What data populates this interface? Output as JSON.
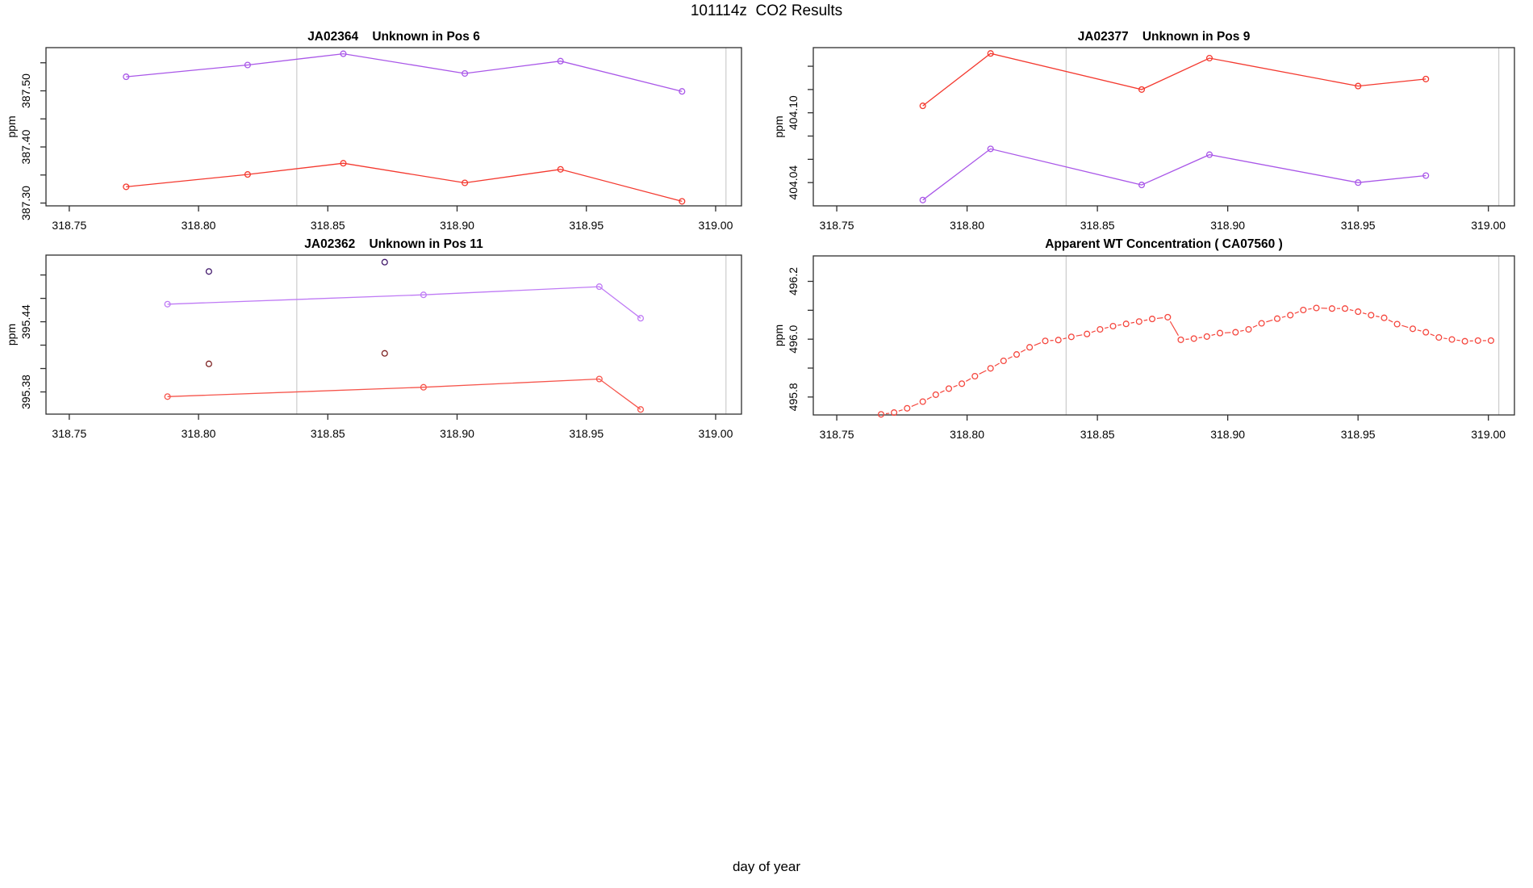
{
  "figure": {
    "title": "101114z  CO2 Results",
    "xlabel": "day of year",
    "colors": {
      "series_red": "#f4392f",
      "series_purple": "#a957e8",
      "outlier_dark_purple": "#41186b",
      "outlier_dark_red": "#7e2323",
      "reference_line": "#cccccc",
      "frame": "#2e2e2e"
    }
  },
  "chart_data": [
    {
      "type": "line",
      "id": "JA02364",
      "title": "JA02364    Unknown in Pos 6",
      "ylabel": "ppm",
      "xlim": [
        318.741,
        319.01
      ],
      "ylim": [
        387.295,
        387.577
      ],
      "ref_x": [
        318.838,
        319.004
      ],
      "xticks": [
        {
          "v": 318.75,
          "l": "318.75"
        },
        {
          "v": 318.8,
          "l": "318.80"
        },
        {
          "v": 318.85,
          "l": "318.85"
        },
        {
          "v": 318.9,
          "l": "318.90"
        },
        {
          "v": 318.95,
          "l": "318.95"
        },
        {
          "v": 319.0,
          "l": "319.00"
        }
      ],
      "yticks": [
        {
          "v": 387.3,
          "l": "387.30"
        },
        {
          "v": 387.35
        },
        {
          "v": 387.4,
          "l": "387.40"
        },
        {
          "v": 387.45
        },
        {
          "v": 387.5,
          "l": "387.50"
        },
        {
          "v": 387.55
        }
      ],
      "series": [
        {
          "name": "purple",
          "color": "#a957e8",
          "style": "o",
          "x": [
            318.772,
            318.819,
            318.856,
            318.903,
            318.94,
            318.987
          ],
          "y": [
            387.525,
            387.546,
            387.566,
            387.531,
            387.553,
            387.499
          ]
        },
        {
          "name": "red",
          "color": "#f4392f",
          "style": "o",
          "x": [
            318.772,
            318.819,
            318.856,
            318.903,
            318.94,
            318.987
          ],
          "y": [
            387.329,
            387.351,
            387.371,
            387.336,
            387.36,
            387.303
          ]
        }
      ]
    },
    {
      "type": "line",
      "id": "JA02377",
      "title": "JA02377    Unknown in Pos 9",
      "ylabel": "ppm",
      "xlim": [
        318.741,
        319.01
      ],
      "ylim": [
        404.02,
        404.156
      ],
      "ref_x": [
        318.838,
        319.004
      ],
      "xticks": [
        {
          "v": 318.75,
          "l": "318.75"
        },
        {
          "v": 318.8,
          "l": "318.80"
        },
        {
          "v": 318.85,
          "l": "318.85"
        },
        {
          "v": 318.9,
          "l": "318.90"
        },
        {
          "v": 318.95,
          "l": "318.95"
        },
        {
          "v": 319.0,
          "l": "319.00"
        }
      ],
      "yticks": [
        {
          "v": 404.04,
          "l": "404.04"
        },
        {
          "v": 404.06
        },
        {
          "v": 404.08
        },
        {
          "v": 404.1,
          "l": "404.10"
        },
        {
          "v": 404.12
        },
        {
          "v": 404.14
        }
      ],
      "series": [
        {
          "name": "red",
          "color": "#f4392f",
          "style": "o",
          "x": [
            318.783,
            318.809,
            318.867,
            318.893,
            318.95,
            318.976
          ],
          "y": [
            404.106,
            404.151,
            404.12,
            404.147,
            404.123,
            404.129
          ]
        },
        {
          "name": "purple",
          "color": "#a957e8",
          "style": "o",
          "x": [
            318.783,
            318.809,
            318.867,
            318.893,
            318.95,
            318.976
          ],
          "y": [
            404.025,
            404.069,
            404.038,
            404.064,
            404.04,
            404.046
          ]
        }
      ]
    },
    {
      "type": "line",
      "id": "JA02362",
      "title": "JA02362    Unknown in Pos 11",
      "ylabel": "ppm",
      "xlim": [
        318.741,
        319.01
      ],
      "ylim": [
        395.361,
        395.497
      ],
      "ref_x": [
        318.838,
        319.004
      ],
      "xticks": [
        {
          "v": 318.75,
          "l": "318.75"
        },
        {
          "v": 318.8,
          "l": "318.80"
        },
        {
          "v": 318.85,
          "l": "318.85"
        },
        {
          "v": 318.9,
          "l": "318.90"
        },
        {
          "v": 318.95,
          "l": "318.95"
        },
        {
          "v": 319.0,
          "l": "319.00"
        }
      ],
      "yticks": [
        {
          "v": 395.38,
          "l": "395.38"
        },
        {
          "v": 395.4
        },
        {
          "v": 395.42
        },
        {
          "v": 395.44,
          "l": "395.44"
        },
        {
          "v": 395.46
        },
        {
          "v": 395.48
        }
      ],
      "series": [
        {
          "name": "purple",
          "color": "#bf7bf5",
          "style": "o",
          "x": [
            318.788,
            318.887,
            318.955,
            318.971
          ],
          "y": [
            395.455,
            395.463,
            395.47,
            395.443
          ]
        },
        {
          "name": "red",
          "color": "#f6554c",
          "style": "o",
          "x": [
            318.788,
            318.887,
            318.955,
            318.971
          ],
          "y": [
            395.376,
            395.384,
            395.391,
            395.365
          ]
        },
        {
          "name": "flagged-dark-purple",
          "color": "#41186b",
          "style": "p",
          "x": [
            318.804,
            318.872
          ],
          "y": [
            395.483,
            395.491
          ]
        },
        {
          "name": "flagged-dark-red",
          "color": "#7e2323",
          "style": "p",
          "x": [
            318.804,
            318.872
          ],
          "y": [
            395.404,
            395.413
          ]
        }
      ]
    },
    {
      "type": "scatter",
      "id": "CA07560",
      "title": "Apparent WT Concentration ( CA07560 )",
      "ylabel": "ppm",
      "xlim": [
        318.741,
        319.01
      ],
      "ylim": [
        495.738,
        496.288
      ],
      "ref_x": [
        318.838,
        319.004
      ],
      "xticks": [
        {
          "v": 318.75,
          "l": "318.75"
        },
        {
          "v": 318.8,
          "l": "318.80"
        },
        {
          "v": 318.85,
          "l": "318.85"
        },
        {
          "v": 318.9,
          "l": "318.90"
        },
        {
          "v": 318.95,
          "l": "318.95"
        },
        {
          "v": 319.0,
          "l": "319.00"
        }
      ],
      "yticks": [
        {
          "v": 495.8,
          "l": "495.8"
        },
        {
          "v": 495.9
        },
        {
          "v": 496.0,
          "l": "496.0"
        },
        {
          "v": 496.1
        },
        {
          "v": 496.2,
          "l": "496.2"
        }
      ],
      "series": [
        {
          "name": "wt-concentration",
          "color": "#f5463d",
          "style": "b",
          "x": [
            318.767,
            318.772,
            318.777,
            318.783,
            318.788,
            318.793,
            318.798,
            318.803,
            318.809,
            318.814,
            318.819,
            318.824,
            318.83,
            318.835,
            318.84,
            318.846,
            318.851,
            318.856,
            318.861,
            318.866,
            318.871,
            318.877,
            318.882,
            318.887,
            318.892,
            318.897,
            318.903,
            318.908,
            318.913,
            318.919,
            318.924,
            318.929,
            318.934,
            318.94,
            318.945,
            318.95,
            318.955,
            318.96,
            318.965,
            318.971,
            318.976,
            318.981,
            318.986,
            318.991,
            318.996,
            319.001
          ],
          "y": [
            495.74,
            495.746,
            495.761,
            495.784,
            495.808,
            495.829,
            495.846,
            495.872,
            495.899,
            495.925,
            495.947,
            495.972,
            495.994,
            495.997,
            496.008,
            496.018,
            496.034,
            496.045,
            496.053,
            496.061,
            496.07,
            496.076,
            495.998,
            496.002,
            496.009,
            496.021,
            496.024,
            496.034,
            496.055,
            496.071,
            496.083,
            496.101,
            496.108,
            496.106,
            496.106,
            496.095,
            496.083,
            496.074,
            496.052,
            496.036,
            496.024,
            496.006,
            495.999,
            495.993,
            495.995,
            495.995
          ]
        }
      ]
    }
  ]
}
